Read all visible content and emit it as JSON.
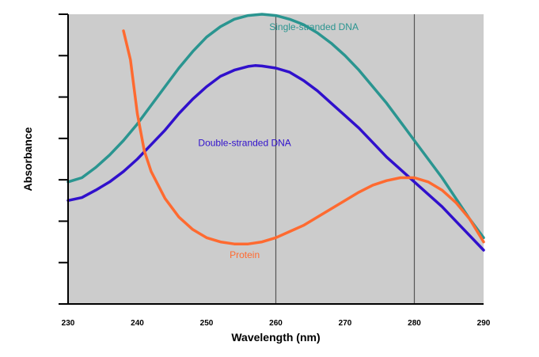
{
  "chart_data": {
    "type": "line",
    "title": "",
    "xlabel": "Wavelength (nm)",
    "ylabel": "Absorbance",
    "xlim": [
      230,
      290
    ],
    "ylim": [
      0,
      7
    ],
    "x_ticks": [
      "230",
      "240",
      "250",
      "260",
      "270",
      "280",
      "290"
    ],
    "y_tick_values": [
      0,
      1,
      2,
      3,
      4,
      5,
      6,
      7
    ],
    "reference_lines_x": [
      260,
      280
    ],
    "plot_background": "#cccccc",
    "series": [
      {
        "name": "Single-stranded DNA",
        "color": "#2a9590",
        "points": [
          [
            230,
            2.95
          ],
          [
            232,
            3.05
          ],
          [
            234,
            3.3
          ],
          [
            236,
            3.6
          ],
          [
            238,
            3.95
          ],
          [
            240,
            4.35
          ],
          [
            242,
            4.8
          ],
          [
            244,
            5.25
          ],
          [
            246,
            5.7
          ],
          [
            248,
            6.1
          ],
          [
            250,
            6.45
          ],
          [
            252,
            6.7
          ],
          [
            254,
            6.88
          ],
          [
            256,
            6.97
          ],
          [
            258,
            7.0
          ],
          [
            260,
            6.97
          ],
          [
            262,
            6.88
          ],
          [
            264,
            6.75
          ],
          [
            266,
            6.55
          ],
          [
            268,
            6.3
          ],
          [
            270,
            6.0
          ],
          [
            272,
            5.65
          ],
          [
            274,
            5.25
          ],
          [
            276,
            4.85
          ],
          [
            278,
            4.4
          ],
          [
            280,
            3.95
          ],
          [
            282,
            3.5
          ],
          [
            284,
            3.05
          ],
          [
            286,
            2.55
          ],
          [
            288,
            2.05
          ],
          [
            290,
            1.6
          ]
        ]
      },
      {
        "name": "Double-stranded DNA",
        "color": "#3010cc",
        "points": [
          [
            230,
            2.5
          ],
          [
            232,
            2.57
          ],
          [
            234,
            2.75
          ],
          [
            236,
            2.95
          ],
          [
            238,
            3.2
          ],
          [
            240,
            3.5
          ],
          [
            242,
            3.85
          ],
          [
            244,
            4.2
          ],
          [
            246,
            4.6
          ],
          [
            248,
            4.95
          ],
          [
            250,
            5.25
          ],
          [
            252,
            5.5
          ],
          [
            254,
            5.65
          ],
          [
            256,
            5.74
          ],
          [
            257,
            5.76
          ],
          [
            258,
            5.75
          ],
          [
            260,
            5.7
          ],
          [
            262,
            5.6
          ],
          [
            264,
            5.4
          ],
          [
            266,
            5.15
          ],
          [
            268,
            4.85
          ],
          [
            270,
            4.55
          ],
          [
            272,
            4.25
          ],
          [
            274,
            3.9
          ],
          [
            276,
            3.55
          ],
          [
            278,
            3.25
          ],
          [
            280,
            2.95
          ],
          [
            282,
            2.65
          ],
          [
            284,
            2.35
          ],
          [
            286,
            2.0
          ],
          [
            288,
            1.65
          ],
          [
            290,
            1.3
          ]
        ]
      },
      {
        "name": "Protein",
        "color": "#ff6a30",
        "points": [
          [
            238,
            6.6
          ],
          [
            239,
            5.9
          ],
          [
            240,
            4.6
          ],
          [
            241,
            3.7
          ],
          [
            242,
            3.2
          ],
          [
            244,
            2.55
          ],
          [
            246,
            2.1
          ],
          [
            248,
            1.8
          ],
          [
            250,
            1.6
          ],
          [
            252,
            1.5
          ],
          [
            254,
            1.45
          ],
          [
            256,
            1.45
          ],
          [
            258,
            1.5
          ],
          [
            260,
            1.6
          ],
          [
            262,
            1.75
          ],
          [
            264,
            1.9
          ],
          [
            266,
            2.1
          ],
          [
            268,
            2.3
          ],
          [
            270,
            2.5
          ],
          [
            272,
            2.7
          ],
          [
            274,
            2.87
          ],
          [
            276,
            2.98
          ],
          [
            278,
            3.05
          ],
          [
            280,
            3.05
          ],
          [
            282,
            2.95
          ],
          [
            284,
            2.75
          ],
          [
            286,
            2.45
          ],
          [
            288,
            2.05
          ],
          [
            290,
            1.5
          ]
        ]
      }
    ],
    "annotations": [
      {
        "text": "Single-stranded DNA",
        "x": 265.5,
        "y": 6.62,
        "color": "#2a9590"
      },
      {
        "text": "Double-stranded DNA",
        "x": 255.5,
        "y": 3.82,
        "color": "#3010cc"
      },
      {
        "text": "Protein",
        "x": 255.5,
        "y": 1.11,
        "color": "#ff6a30"
      }
    ]
  }
}
